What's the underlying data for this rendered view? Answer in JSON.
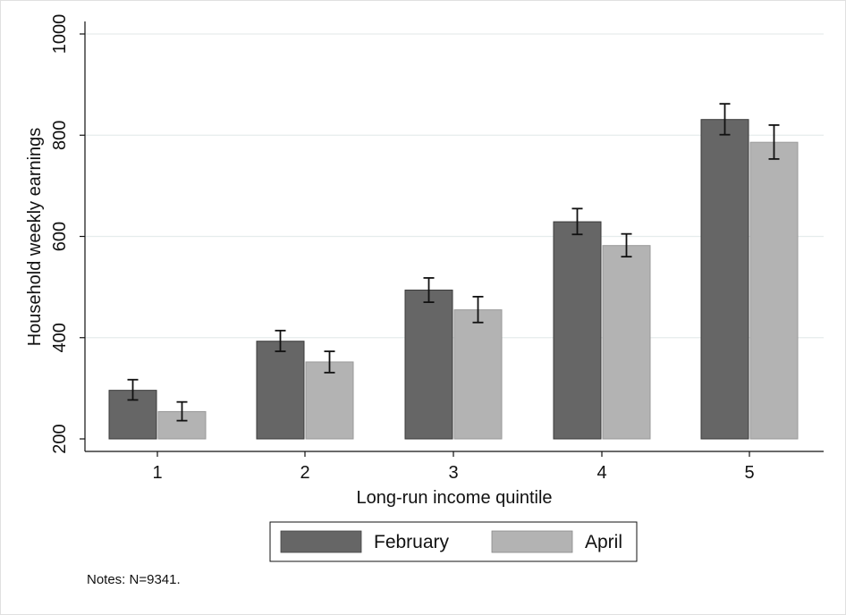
{
  "chart_data": {
    "type": "bar",
    "categories": [
      "1",
      "2",
      "3",
      "4",
      "5"
    ],
    "series": [
      {
        "name": "February",
        "values": [
          296,
          393,
          494,
          629,
          831
        ],
        "ci_low": [
          277,
          373,
          470,
          604,
          801
        ],
        "ci_high": [
          317,
          414,
          518,
          655,
          862
        ]
      },
      {
        "name": "April",
        "values": [
          254,
          352,
          455,
          582,
          786
        ],
        "ci_low": [
          236,
          331,
          430,
          560,
          753
        ],
        "ci_high": [
          273,
          373,
          481,
          605,
          820
        ]
      }
    ],
    "xlabel": "Long-run income quintile",
    "ylabel": "Household weekly earnings",
    "ylim": [
      200,
      1000
    ],
    "yticks": [
      200,
      400,
      600,
      800,
      1000
    ],
    "grid": true,
    "legend_position": "bottom",
    "colors": {
      "February": "#666666",
      "April": "#b3b3b3",
      "gridline": "#e6ecec"
    },
    "note": "Notes: N=9341."
  }
}
